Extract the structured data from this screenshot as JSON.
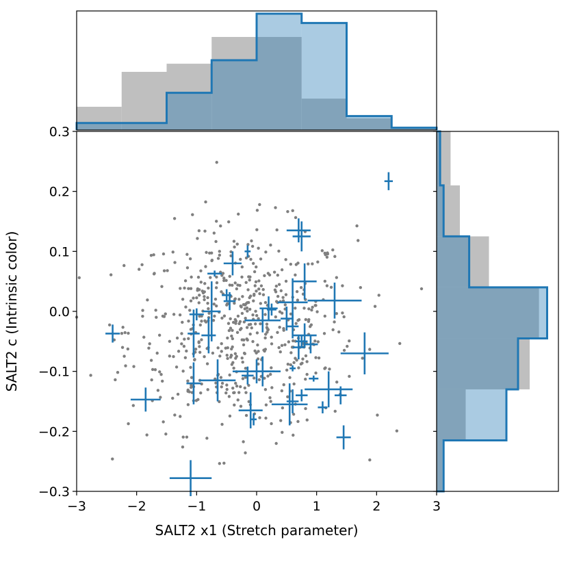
{
  "chart_data": {
    "type": "scatter",
    "xlabel": "SALT2 x1 (Stretch parameter)",
    "ylabel": "SALT2 c (Intrinsic color)",
    "xlim": [
      -3,
      3
    ],
    "ylim": [
      -0.3,
      0.3
    ],
    "xticks": [
      "−3",
      "−2",
      "−1",
      "0",
      "1",
      "2",
      "3"
    ],
    "yticks": [
      "−0.3",
      "−0.2",
      "−0.1",
      "0.0",
      "0.1",
      "0.2",
      "0.3"
    ],
    "xtick_values": [
      -3,
      -2,
      -1,
      0,
      1,
      2,
      3
    ],
    "ytick_values": [
      -0.3,
      -0.2,
      -0.1,
      0.0,
      0.1,
      0.2,
      0.3
    ],
    "colors": {
      "background_points": "#7f7f7f",
      "highlight": "#1f77b4",
      "hist_background": "#bfbfbf",
      "hist_highlight": "#a6c8e3"
    },
    "background_points_approx_count": 600,
    "background_points_description_source": "grey dots",
    "highlighted_series": [
      {
        "x": 2.2,
        "y": 0.217,
        "xerr": 0.07,
        "yerr": 0.015
      },
      {
        "x": 0.7,
        "y": 0.135,
        "xerr": 0.2,
        "yerr": 0.02
      },
      {
        "x": 0.75,
        "y": 0.125,
        "xerr": 0.15,
        "yerr": 0.025
      },
      {
        "x": -0.15,
        "y": 0.1,
        "xerr": 0.05,
        "yerr": 0.01
      },
      {
        "x": -0.4,
        "y": 0.08,
        "xerr": 0.15,
        "yerr": 0.02
      },
      {
        "x": -0.7,
        "y": 0.063,
        "xerr": 0.12,
        "yerr": 0.005
      },
      {
        "x": 0.8,
        "y": 0.05,
        "xerr": 0.2,
        "yerr": 0.03
      },
      {
        "x": -0.5,
        "y": 0.027,
        "xerr": 0.08,
        "yerr": 0.01
      },
      {
        "x": -0.45,
        "y": 0.017,
        "xerr": 0.1,
        "yerr": 0.015
      },
      {
        "x": 1.3,
        "y": 0.018,
        "xerr": 0.45,
        "yerr": 0.03
      },
      {
        "x": 0.6,
        "y": 0.015,
        "xerr": 0.25,
        "yerr": 0.04
      },
      {
        "x": 0.2,
        "y": 0.005,
        "xerr": 0.15,
        "yerr": 0.02
      },
      {
        "x": 0.25,
        "y": 0.003,
        "xerr": 0.08,
        "yerr": 0.01
      },
      {
        "x": -0.75,
        "y": 0.0,
        "xerr": 0.15,
        "yerr": 0.05
      },
      {
        "x": -1.0,
        "y": -0.005,
        "xerr": 0.12,
        "yerr": 0.01
      },
      {
        "x": 0.1,
        "y": -0.015,
        "xerr": 0.3,
        "yerr": 0.02
      },
      {
        "x": 0.5,
        "y": -0.012,
        "xerr": 0.1,
        "yerr": 0.02
      },
      {
        "x": 0.6,
        "y": -0.025,
        "xerr": 0.1,
        "yerr": 0.02
      },
      {
        "x": -2.4,
        "y": -0.037,
        "xerr": 0.12,
        "yerr": 0.015
      },
      {
        "x": -1.05,
        "y": -0.037,
        "xerr": 0.1,
        "yerr": 0.04
      },
      {
        "x": -0.8,
        "y": -0.04,
        "xerr": 0.12,
        "yerr": 0.03
      },
      {
        "x": 0.8,
        "y": -0.04,
        "xerr": 0.2,
        "yerr": 0.02
      },
      {
        "x": 0.75,
        "y": -0.05,
        "xerr": 0.1,
        "yerr": 0.01
      },
      {
        "x": 0.9,
        "y": -0.055,
        "xerr": 0.12,
        "yerr": 0.015
      },
      {
        "x": 0.7,
        "y": -0.06,
        "xerr": 0.1,
        "yerr": 0.02
      },
      {
        "x": 1.8,
        "y": -0.07,
        "xerr": 0.4,
        "yerr": 0.035
      },
      {
        "x": 0.6,
        "y": -0.095,
        "xerr": 0.05,
        "yerr": 0.005
      },
      {
        "x": 0.0,
        "y": -0.1,
        "xerr": 0.4,
        "yerr": 0.02
      },
      {
        "x": -0.15,
        "y": -0.107,
        "xerr": 0.1,
        "yerr": 0.015
      },
      {
        "x": 0.1,
        "y": -0.1,
        "xerr": 0.2,
        "yerr": 0.025
      },
      {
        "x": 0.95,
        "y": -0.112,
        "xerr": 0.08,
        "yerr": 0.005
      },
      {
        "x": -0.65,
        "y": -0.115,
        "xerr": 0.3,
        "yerr": 0.035
      },
      {
        "x": -1.05,
        "y": -0.12,
        "xerr": 0.12,
        "yerr": 0.035
      },
      {
        "x": 1.2,
        "y": -0.13,
        "xerr": 0.4,
        "yerr": 0.03
      },
      {
        "x": 0.75,
        "y": -0.14,
        "xerr": 0.1,
        "yerr": 0.01
      },
      {
        "x": 1.4,
        "y": -0.14,
        "xerr": 0.1,
        "yerr": 0.015
      },
      {
        "x": -1.85,
        "y": -0.147,
        "xerr": 0.25,
        "yerr": 0.02
      },
      {
        "x": 0.6,
        "y": -0.15,
        "xerr": 0.1,
        "yerr": 0.02
      },
      {
        "x": 0.55,
        "y": -0.155,
        "xerr": 0.3,
        "yerr": 0.035
      },
      {
        "x": 1.1,
        "y": -0.16,
        "xerr": 0.08,
        "yerr": 0.01
      },
      {
        "x": -0.1,
        "y": -0.165,
        "xerr": 0.2,
        "yerr": 0.03
      },
      {
        "x": -0.05,
        "y": -0.18,
        "xerr": 0.05,
        "yerr": 0.01
      },
      {
        "x": 1.45,
        "y": -0.21,
        "xerr": 0.12,
        "yerr": 0.02
      },
      {
        "x": -1.1,
        "y": -0.278,
        "xerr": 0.35,
        "yerr": 0.03
      }
    ],
    "top_histogram": {
      "bin_edges": [
        -3,
        -2.25,
        -1.5,
        -0.75,
        0,
        0.75,
        1.5,
        2.25,
        3
      ],
      "background": [
        0.2,
        0.5,
        0.57,
        0.8,
        0.8,
        0.27,
        0.1,
        0.02
      ],
      "highlight": [
        0.06,
        0.06,
        0.32,
        0.6,
        1.0,
        0.92,
        0.12,
        0.02
      ]
    },
    "right_histogram": {
      "bin_edges": [
        -0.3,
        -0.215,
        -0.13,
        -0.045,
        0.04,
        0.125,
        0.21,
        0.3
      ],
      "background": [
        0.05,
        0.25,
        0.8,
        0.88,
        0.45,
        0.2,
        0.12
      ],
      "highlight": [
        0.06,
        0.6,
        0.7,
        0.95,
        0.28,
        0.06,
        0.03
      ]
    }
  }
}
